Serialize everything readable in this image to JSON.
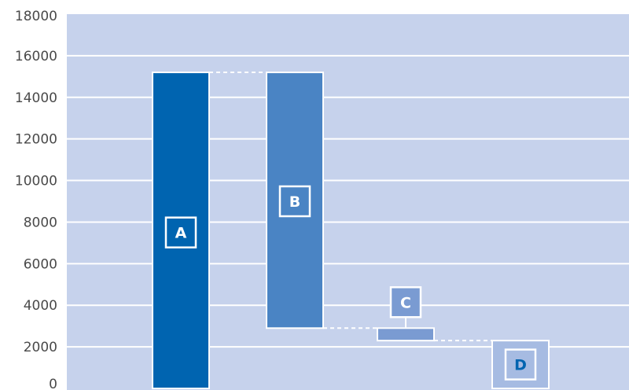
{
  "chart_data": {
    "type": "waterfall",
    "title": "",
    "xlabel": "",
    "ylabel": "",
    "ylim": [
      0,
      18000
    ],
    "yticks": [
      0,
      2000,
      4000,
      6000,
      8000,
      10000,
      12000,
      14000,
      16000,
      18000
    ],
    "grid": true,
    "legend": "none",
    "bars": [
      {
        "label": "A",
        "start": 0,
        "end": 15200,
        "kind": "total"
      },
      {
        "label": "B",
        "start": 15200,
        "end": 2900,
        "kind": "decrease"
      },
      {
        "label": "C",
        "start": 2900,
        "end": 2300,
        "kind": "decrease"
      },
      {
        "label": "D",
        "start": 2300,
        "end": 0,
        "kind": "total"
      }
    ],
    "colors": {
      "background": "#c6d2ec",
      "gridline": "#ffffff",
      "A": "#0064b0",
      "B": "#4a84c4",
      "C": "#7a9bd2",
      "D": "#a6bbe2",
      "connector": "#ffffff",
      "label_dark": "#0064b0",
      "label_light": "#ffffff"
    }
  }
}
